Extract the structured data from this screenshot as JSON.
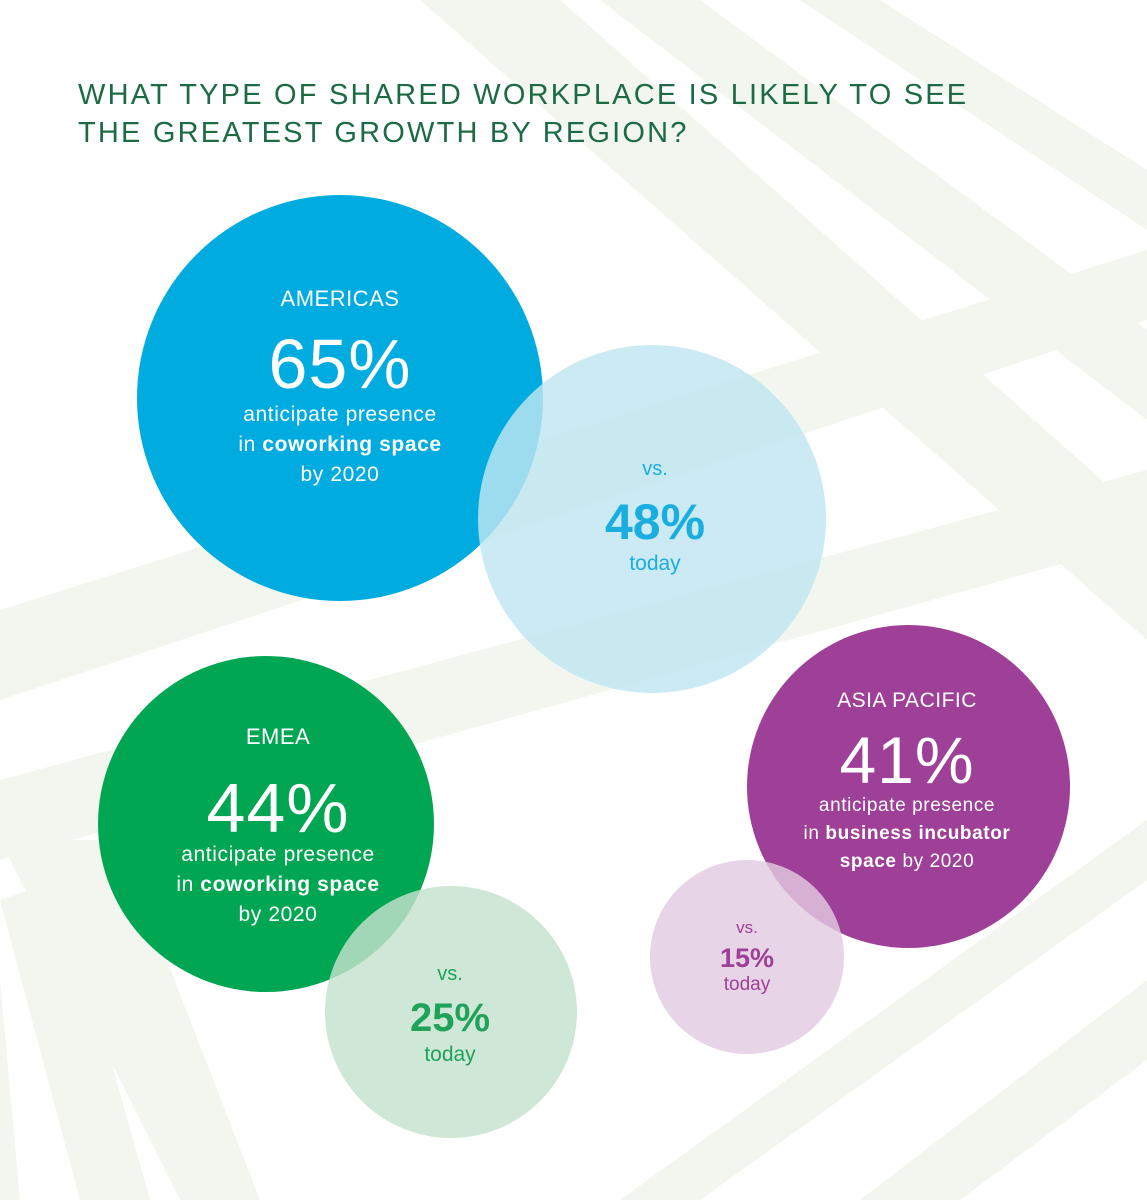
{
  "title": "WHAT TYPE OF SHARED WORKPLACE IS LIKELY TO SEE THE GREATEST GROWTH BY REGION?",
  "colors": {
    "title": "#1d6b45",
    "americas": "#00abdf",
    "americas_today": "#c7e8f3",
    "americas_today_text": "#1aaee0",
    "emea": "#00a651",
    "emea_today": "#cfe6d5",
    "emea_today_text": "#1fa35a",
    "apac": "#9e3f98",
    "apac_today": "#e5cfe4",
    "apac_today_text": "#9e3f98"
  },
  "regions": {
    "americas": {
      "name": "AMERICAS",
      "future_pct": "65%",
      "desc_line1": "anticipate presence",
      "desc_in": "in ",
      "desc_space": "coworking space",
      "desc_line3": "by 2020",
      "vs": "vs.",
      "today_pct": "48%",
      "today": "today"
    },
    "emea": {
      "name": "EMEA",
      "future_pct": "44%",
      "desc_line1": "anticipate presence",
      "desc_in": "in ",
      "desc_space": "coworking space",
      "desc_line3": "by 2020",
      "vs": "vs.",
      "today_pct": "25%",
      "today": "today"
    },
    "apac": {
      "name": "ASIA PACIFIC",
      "future_pct": "41%",
      "desc_line1": "anticipate presence",
      "desc_in": "in ",
      "desc_space": "business incubator",
      "desc_space2": "space",
      "desc_line3": " by 2020",
      "vs": "vs.",
      "today_pct": "15%",
      "today": "today"
    }
  },
  "chart_data": {
    "type": "bubble",
    "title": "WHAT TYPE OF SHARED WORKPLACE IS LIKELY TO SEE THE GREATEST GROWTH BY REGION?",
    "categories": [
      "AMERICAS",
      "EMEA",
      "ASIA PACIFIC"
    ],
    "series": [
      {
        "name": "by 2020",
        "values": [
          65,
          44,
          41
        ]
      },
      {
        "name": "today",
        "values": [
          48,
          25,
          15
        ]
      }
    ],
    "space_type": [
      "coworking space",
      "coworking space",
      "business incubator space"
    ]
  }
}
